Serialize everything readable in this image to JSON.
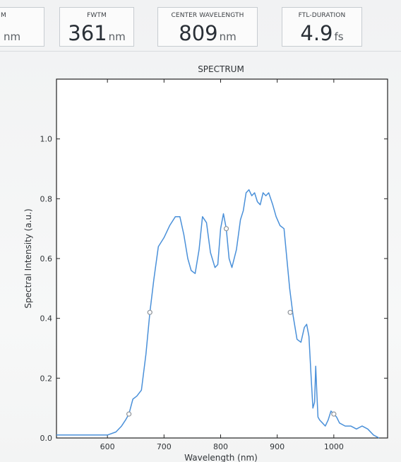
{
  "metrics": {
    "fwhm": {
      "label": "M",
      "value": "",
      "unit": "nm"
    },
    "fwtm": {
      "label": "FWTM",
      "value": "361",
      "unit": "nm"
    },
    "center": {
      "label": "CENTER WAVELENGTH",
      "value": "809",
      "unit": "nm"
    },
    "ftl": {
      "label": "FTL-DURATION",
      "value": "4.9",
      "unit": "fs"
    }
  },
  "colors": {
    "line": "#4a90d9",
    "marker": "#8e9399",
    "axis": "#222222"
  },
  "chart_data": {
    "type": "line",
    "title": "SPECTRUM",
    "xlabel": "Wavelength (nm)",
    "ylabel": "Spectral Intensity (a.u.)",
    "xlim": [
      510,
      1095
    ],
    "ylim": [
      0.0,
      1.2
    ],
    "xticks": [
      600,
      700,
      800,
      900,
      1000
    ],
    "yticks": [
      0.0,
      0.2,
      0.4,
      0.6,
      0.8,
      1.0
    ],
    "ytick_labels": [
      "0.0",
      "0.2",
      "0.4",
      "0.6",
      "0.8",
      "1.0"
    ],
    "grid": false,
    "series": [
      {
        "x": [
          510,
          560,
          600,
          615,
          625,
          632,
          638,
          645,
          652,
          660,
          668,
          675,
          682,
          690,
          700,
          710,
          720,
          728,
          735,
          742,
          748,
          755,
          762,
          768,
          775,
          782,
          790,
          795,
          800,
          805,
          810,
          815,
          820,
          828,
          835,
          840,
          845,
          850,
          855,
          860,
          865,
          870,
          875,
          880,
          885,
          892,
          898,
          905,
          912,
          918,
          922,
          928,
          935,
          942,
          948,
          952,
          956,
          960,
          963,
          966,
          968,
          970,
          972,
          975,
          980,
          985,
          990,
          995,
          1000,
          1005,
          1010,
          1020,
          1030,
          1040,
          1050,
          1060,
          1070,
          1080
        ],
        "y": [
          0.01,
          0.01,
          0.01,
          0.02,
          0.04,
          0.06,
          0.08,
          0.13,
          0.14,
          0.16,
          0.28,
          0.42,
          0.53,
          0.64,
          0.67,
          0.71,
          0.74,
          0.74,
          0.68,
          0.6,
          0.56,
          0.55,
          0.63,
          0.74,
          0.72,
          0.62,
          0.57,
          0.58,
          0.7,
          0.75,
          0.7,
          0.6,
          0.57,
          0.63,
          0.73,
          0.76,
          0.82,
          0.83,
          0.81,
          0.82,
          0.79,
          0.78,
          0.82,
          0.81,
          0.82,
          0.78,
          0.74,
          0.71,
          0.7,
          0.58,
          0.5,
          0.41,
          0.33,
          0.32,
          0.37,
          0.38,
          0.34,
          0.2,
          0.1,
          0.12,
          0.24,
          0.15,
          0.07,
          0.06,
          0.05,
          0.04,
          0.06,
          0.09,
          0.08,
          0.07,
          0.05,
          0.04,
          0.04,
          0.03,
          0.04,
          0.03,
          0.01,
          0.0
        ]
      }
    ],
    "markers": {
      "x": [
        638,
        675,
        810,
        923,
        1000
      ],
      "y": [
        0.08,
        0.42,
        0.7,
        0.42,
        0.08
      ]
    }
  }
}
